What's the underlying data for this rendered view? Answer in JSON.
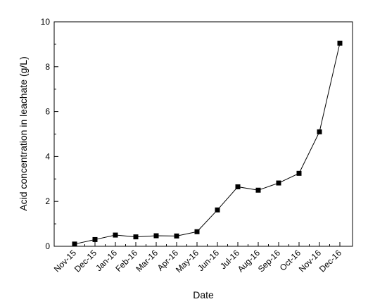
{
  "chart_data": {
    "type": "line",
    "title": "",
    "xlabel": "Date",
    "ylabel": "Acid concentration in leachate (g/L)",
    "categories": [
      "Nov-15",
      "Dec-15",
      "Jan-16",
      "Feb-16",
      "Mar-16",
      "Apr-16",
      "May-16",
      "Jun-16",
      "Jul-16",
      "Aug-16",
      "Sep-16",
      "Oct-16",
      "Nov-16",
      "Dec-16"
    ],
    "series": [
      {
        "values": [
          0.1,
          0.3,
          0.5,
          0.42,
          0.47,
          0.46,
          0.65,
          1.62,
          2.65,
          2.5,
          2.82,
          3.25,
          5.1,
          9.05
        ]
      }
    ],
    "ylim": [
      0,
      10
    ],
    "yticks": [
      0,
      2,
      4,
      6,
      8,
      10
    ],
    "grid": false,
    "legend": "none",
    "marker": "square",
    "color": "#000000"
  }
}
